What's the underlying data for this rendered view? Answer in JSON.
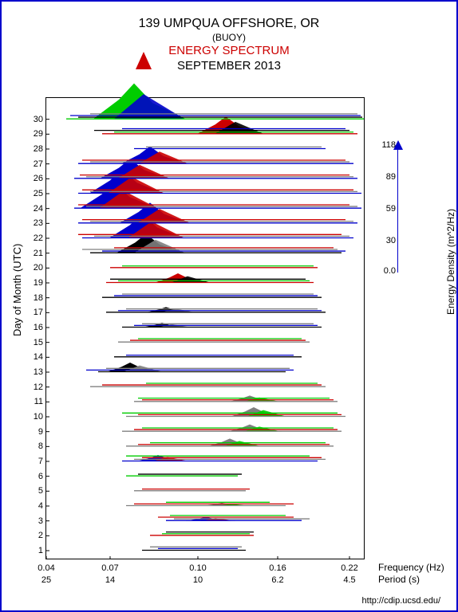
{
  "title": {
    "line1": "139 UMPQUA OFFSHORE, OR",
    "line2": "(BUOY)",
    "line3": "ENERGY SPECTRUM",
    "line4": "SEPTEMBER 2013"
  },
  "source_url": "http://cdip.ucsd.edu/",
  "y_axis": {
    "label": "Day of Month (UTC)",
    "ticks": [
      1,
      2,
      3,
      4,
      5,
      6,
      7,
      8,
      9,
      10,
      11,
      12,
      13,
      14,
      15,
      16,
      17,
      18,
      19,
      20,
      21,
      22,
      23,
      24,
      25,
      26,
      27,
      28,
      29,
      30
    ]
  },
  "x_axis": {
    "freq_label": "Frequency (Hz)",
    "period_label": "Period (s)",
    "freq_ticks": [
      "0.04",
      "0.07",
      "0.10",
      "0.16",
      "0.22"
    ],
    "period_ticks": [
      "25",
      "14",
      "10",
      "6.2",
      "4.5"
    ],
    "positions": [
      0,
      80,
      190,
      290,
      380
    ]
  },
  "density_axis": {
    "label": "Energy Density (m^2/Hz)",
    "ticks": [
      "118",
      "89",
      "59",
      "30",
      "0.0"
    ],
    "tick_pos": [
      0,
      40,
      80,
      120,
      158
    ]
  },
  "colors": {
    "black": "#000000",
    "blue": "#0000cc",
    "red": "#cc0000",
    "green": "#00cc00",
    "gray": "#808080"
  },
  "spectra": {
    "color_cycle": [
      "#000000",
      "#0000cc",
      "#808080",
      "#cc0000",
      "#00cc00"
    ],
    "lines_per_day": 4,
    "days": [
      {
        "day": 1,
        "streaks": [
          [
            120,
            250,
            0.4
          ],
          [
            140,
            240,
            0.3
          ],
          [
            130,
            245,
            0.2
          ]
        ]
      },
      {
        "day": 2,
        "streaks": [
          [
            130,
            260,
            0.5
          ],
          [
            145,
            255,
            0.3
          ],
          [
            150,
            260,
            0.4
          ]
        ]
      },
      {
        "day": 3,
        "streaks": [
          [
            150,
            320,
            0.6
          ],
          [
            160,
            330,
            0.5
          ],
          [
            140,
            310,
            0.4
          ],
          [
            155,
            300,
            0.3
          ]
        ],
        "peak": [
          200,
          5
        ]
      },
      {
        "day": 4,
        "streaks": [
          [
            100,
            300,
            0.5
          ],
          [
            110,
            310,
            0.4
          ],
          [
            150,
            280,
            0.3
          ]
        ],
        "peak": [
          220,
          4
        ]
      },
      {
        "day": 5,
        "streaks": [
          [
            110,
            250,
            0.3
          ],
          [
            120,
            255,
            0.3
          ]
        ]
      },
      {
        "day": 6,
        "streaks": [
          [
            100,
            240,
            0.4
          ],
          [
            115,
            245,
            0.3
          ]
        ]
      },
      {
        "day": 7,
        "streaks": [
          [
            95,
            340,
            0.6
          ],
          [
            110,
            350,
            0.5
          ],
          [
            120,
            345,
            0.5
          ],
          [
            100,
            330,
            0.4
          ]
        ],
        "peak": [
          140,
          8
        ]
      },
      {
        "day": 8,
        "streaks": [
          [
            100,
            360,
            0.7
          ],
          [
            115,
            355,
            0.6
          ],
          [
            130,
            350,
            0.5
          ]
        ],
        "peak": [
          230,
          10
        ]
      },
      {
        "day": 9,
        "streaks": [
          [
            95,
            370,
            0.6
          ],
          [
            110,
            365,
            0.5
          ],
          [
            120,
            360,
            0.5
          ]
        ],
        "peak": [
          255,
          9
        ]
      },
      {
        "day": 10,
        "streaks": [
          [
            100,
            375,
            0.7
          ],
          [
            115,
            370,
            0.6
          ],
          [
            95,
            365,
            0.5
          ]
        ],
        "peak": [
          260,
          12
        ]
      },
      {
        "day": 11,
        "streaks": [
          [
            110,
            365,
            0.6
          ],
          [
            120,
            360,
            0.5
          ],
          [
            115,
            355,
            0.4
          ]
        ],
        "peak": [
          255,
          8
        ]
      },
      {
        "day": 12,
        "streaks": [
          [
            55,
            350,
            0.5
          ],
          [
            70,
            345,
            0.4
          ],
          [
            125,
            340,
            0.4
          ]
        ]
      },
      {
        "day": 13,
        "streaks": [
          [
            65,
            300,
            0.7
          ],
          [
            50,
            310,
            0.5
          ],
          [
            75,
            305,
            0.4
          ]
        ],
        "peak": [
          105,
          12
        ]
      },
      {
        "day": 14,
        "streaks": [
          [
            85,
            320,
            0.5
          ],
          [
            100,
            310,
            0.4
          ]
        ]
      },
      {
        "day": 15,
        "streaks": [
          [
            90,
            330,
            0.5
          ],
          [
            105,
            325,
            0.4
          ],
          [
            115,
            320,
            0.4
          ]
        ]
      },
      {
        "day": 16,
        "streaks": [
          [
            95,
            345,
            0.6
          ],
          [
            110,
            340,
            0.5
          ],
          [
            120,
            335,
            0.4
          ]
        ],
        "peak": [
          145,
          6
        ]
      },
      {
        "day": 17,
        "streaks": [
          [
            75,
            350,
            0.6
          ],
          [
            90,
            345,
            0.5
          ],
          [
            100,
            340,
            0.5
          ]
        ],
        "peak": [
          150,
          7
        ]
      },
      {
        "day": 18,
        "streaks": [
          [
            70,
            345,
            0.6
          ],
          [
            85,
            340,
            0.5
          ],
          [
            95,
            335,
            0.4
          ]
        ]
      },
      {
        "day": 19,
        "streaks": [
          [
            75,
            335,
            0.7
          ],
          [
            90,
            330,
            0.6
          ],
          [
            80,
            325,
            0.5
          ]
        ],
        "peak": [
          165,
          12
        ]
      },
      {
        "day": 20,
        "streaks": [
          [
            80,
            340,
            0.5
          ],
          [
            95,
            335,
            0.4
          ]
        ]
      },
      {
        "day": 21,
        "streaks": [
          [
            55,
            370,
            0.7
          ],
          [
            70,
            375,
            0.6
          ],
          [
            45,
            365,
            0.5
          ],
          [
            85,
            360,
            0.5
          ]
        ],
        "peak": [
          125,
          24
        ]
      },
      {
        "day": 22,
        "streaks": [
          [
            45,
            385,
            0.8
          ],
          [
            60,
            380,
            0.7
          ],
          [
            40,
            370,
            0.6
          ]
        ],
        "peak": [
          120,
          30
        ]
      },
      {
        "day": 23,
        "streaks": [
          [
            40,
            390,
            0.8
          ],
          [
            55,
            385,
            0.7
          ],
          [
            45,
            375,
            0.6
          ]
        ],
        "peak": [
          130,
          26
        ]
      },
      {
        "day": 24,
        "streaks": [
          [
            35,
            395,
            0.9
          ],
          [
            50,
            390,
            0.7
          ],
          [
            40,
            380,
            0.6
          ]
        ],
        "peak": [
          85,
          32
        ]
      },
      {
        "day": 25,
        "streaks": [
          [
            40,
            395,
            0.9
          ],
          [
            55,
            390,
            0.8
          ],
          [
            45,
            385,
            0.7
          ]
        ],
        "peak": [
          95,
          30
        ]
      },
      {
        "day": 26,
        "streaks": [
          [
            35,
            390,
            0.8
          ],
          [
            50,
            385,
            0.7
          ],
          [
            42,
            380,
            0.6
          ]
        ],
        "peak": [
          105,
          25
        ]
      },
      {
        "day": 27,
        "streaks": [
          [
            40,
            385,
            0.8
          ],
          [
            55,
            380,
            0.7
          ],
          [
            45,
            375,
            0.6
          ]
        ],
        "peak": [
          130,
          22
        ]
      },
      {
        "day": 28,
        "streaks": [
          [
            110,
            350,
            0.4
          ],
          [
            125,
            345,
            0.3
          ]
        ]
      },
      {
        "day": 29,
        "streaks": [
          [
            70,
            390,
            0.8
          ],
          [
            85,
            385,
            0.7
          ],
          [
            60,
            380,
            0.6
          ],
          [
            95,
            375,
            0.5
          ]
        ],
        "peak": [
          225,
          22
        ]
      },
      {
        "day": 30,
        "streaks": [
          [
            25,
            398,
            1.0
          ],
          [
            40,
            396,
            0.9
          ],
          [
            30,
            394,
            0.8
          ],
          [
            55,
            390,
            0.7
          ]
        ],
        "peak": [
          110,
          45
        ]
      }
    ]
  }
}
